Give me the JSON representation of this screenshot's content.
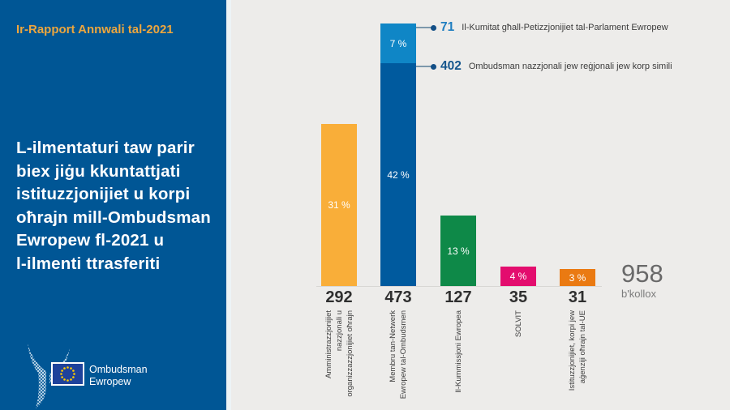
{
  "sidebar": {
    "report_title": "Ir-Rapport Annwali tal-2021",
    "headline_lines": [
      "L-ilmentaturi taw parir",
      "biex jiġu kkuntattjati",
      "istituzzjonijiet u korpi",
      "oħrajn mill-Ombudsman",
      "Ewropew fl-2021 u",
      "l-ilmenti ttrasferiti"
    ],
    "logo": {
      "line1": "Ombudsman",
      "line2": "Ewropew"
    },
    "colors": {
      "background": "#005695",
      "title_text": "#ECA63E"
    }
  },
  "chart_data": {
    "type": "bar",
    "total": {
      "value": "958",
      "caption": "b'kollox"
    },
    "ylim": [
      0,
      473
    ],
    "grid": false,
    "legend": "none",
    "categories": [
      {
        "label_lines": [
          "Amministrazzjonijiet",
          "nazzjonali u",
          "organizzazzjonijiet oħrajn"
        ],
        "value": "292",
        "segments": [
          {
            "amount": 292,
            "percent": "31 %",
            "color": "#F9AE39"
          }
        ]
      },
      {
        "label_lines": [
          "Membru tan-Netwerk",
          "Ewropew tal-Ombudsmen"
        ],
        "value": "473",
        "segments": [
          {
            "amount": 71,
            "percent": "7 %",
            "color": "#0F86C6"
          },
          {
            "amount": 402,
            "percent": "42 %",
            "color": "#005A9E"
          }
        ]
      },
      {
        "label_lines": [
          "Il-Kummissjoni Ewropea"
        ],
        "value": "127",
        "segments": [
          {
            "amount": 127,
            "percent": "13 %",
            "color": "#0E8948"
          }
        ]
      },
      {
        "label_lines": [
          "SOLVIT"
        ],
        "value": "35",
        "segments": [
          {
            "amount": 35,
            "percent": "4 %",
            "color": "#E30D6E"
          }
        ]
      },
      {
        "label_lines": [
          "Istituzzjonijiet, korpi jew",
          "aġenziji oħrajn tal-UE"
        ],
        "value": "31",
        "segments": [
          {
            "amount": 31,
            "percent": "3 %",
            "color": "#EA7A12"
          }
        ]
      }
    ],
    "annotations": [
      {
        "value": "71",
        "value_color": "#1F7EC0",
        "text": "Il-Kumitat għall-Petizzjonijiet tal-Parlament Ewropew"
      },
      {
        "value": "402",
        "value_color": "#15568D",
        "text": "Ombudsman nazzjonali jew reġjonali jew korp simili"
      }
    ]
  }
}
